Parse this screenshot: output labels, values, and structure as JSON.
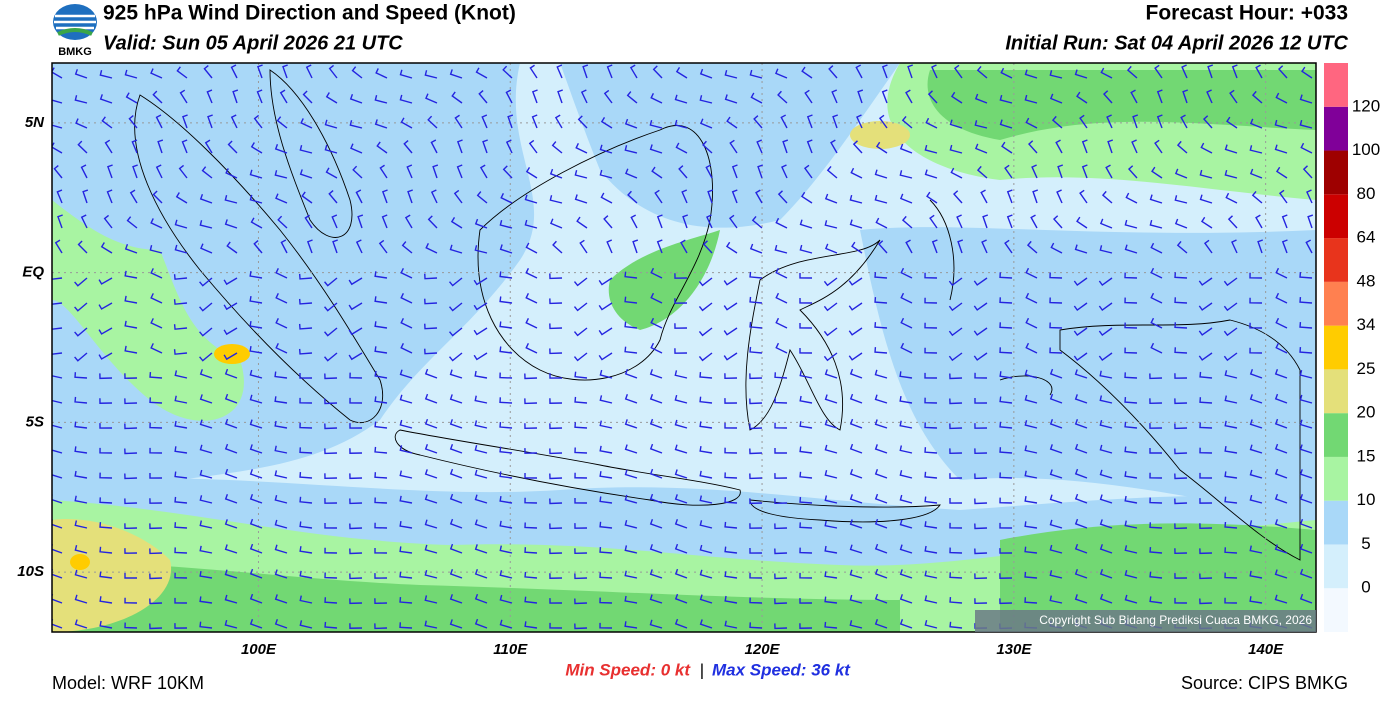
{
  "header": {
    "logo": "BMKG",
    "title": "925 hPa Wind Direction and Speed (Knot)",
    "valid": "Valid: Sun 05 April 2026 21 UTC",
    "forecast_hour": "Forecast Hour: +033",
    "initial_run": "Initial Run: Sat 04 April 2026 12 UTC"
  },
  "map": {
    "lon_range": [
      91.8,
      142
    ],
    "lat_range": [
      -12,
      7
    ],
    "lon_ticks": [
      {
        "value": 100,
        "label": "100E"
      },
      {
        "value": 110,
        "label": "110E"
      },
      {
        "value": 120,
        "label": "120E"
      },
      {
        "value": 130,
        "label": "130E"
      },
      {
        "value": 140,
        "label": "140E"
      }
    ],
    "lat_ticks": [
      {
        "value": 5,
        "label": "5N"
      },
      {
        "value": 0,
        "label": "EQ"
      },
      {
        "value": -5,
        "label": "5S"
      },
      {
        "value": -10,
        "label": "10S"
      }
    ],
    "copyright": "Copyright Sub Bidang Prediksi Cuaca BMKG, 2026"
  },
  "colorbar": {
    "colors": [
      "#f3f9ff",
      "#d4effc",
      "#a9d8f8",
      "#a8f4a2",
      "#72d873",
      "#e4e07a",
      "#ffcc00",
      "#ff8050",
      "#e8341c",
      "#cc0000",
      "#9e0000",
      "#800099",
      "#ff6680"
    ],
    "labels": [
      "0",
      "5",
      "10",
      "15",
      "20",
      "25",
      "34",
      "48",
      "64",
      "80",
      "100",
      "120"
    ]
  },
  "footer": {
    "model": "Model: WRF 10KM",
    "min_speed": "Min Speed:  0 kt",
    "separator": "|",
    "max_speed": "Max Speed:  36 kt",
    "source": "Source: CIPS BMKG"
  }
}
